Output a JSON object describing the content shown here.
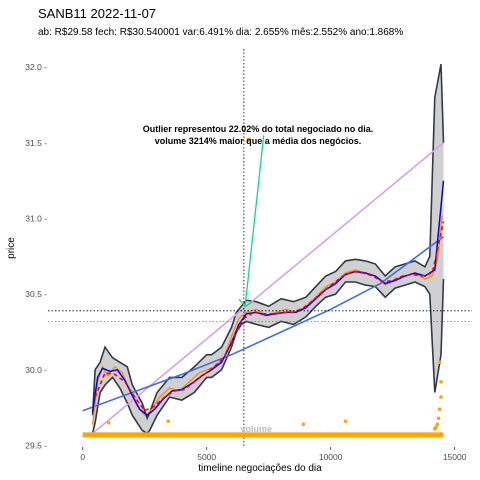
{
  "chart_data": {
    "type": "line",
    "title": "SANB11 2022-11-07",
    "subtitle": "ab: R$29.58 fech: R$30.540001 var:6.491% dia: 2.655% mês:2.552% ano:1.868%",
    "xlabel": "timeline negociações do dia",
    "ylabel": "price",
    "xlim": [
      -1400,
      15700
    ],
    "ylim": [
      29.49,
      32.12
    ],
    "x_ticks": [
      0,
      5000,
      10000,
      15000
    ],
    "x_tick_labels": [
      "0",
      "5000",
      "10000",
      "15000"
    ],
    "y_ticks": [
      29.5,
      30.0,
      30.5,
      31.0,
      31.5,
      32.0
    ],
    "y_tick_labels": [
      "29.5 -",
      "30.0 -",
      "30.5 -",
      "31.0 -",
      "31.5 -",
      "32.0 -"
    ],
    "annotation_lines": [
      "Outlier representou 22.02% do total negociado no dia.",
      "volume 3214% maior que a média dos negócios."
    ],
    "volume_label": "volume",
    "vline_x": 6500,
    "hline_black": 30.39,
    "hline_green": 30.32,
    "colors": {
      "ribbon": "#c8c8c8",
      "envelope": "#2f3b47",
      "price": "#ff8c00",
      "smooth": "#0000ff",
      "dashed": "#ff0000",
      "trend": "#3a6ee8",
      "diag": "#d8a0e8",
      "arrow": "#00e08a",
      "volume": "#ffa500",
      "hline_green": "#2fa84f"
    },
    "series": [
      {
        "key": "ribbon_upper",
        "points": [
          [
            400,
            29.7
          ],
          [
            500,
            30.0
          ],
          [
            700,
            30.05
          ],
          [
            900,
            30.15
          ],
          [
            1200,
            30.08
          ],
          [
            1500,
            30.05
          ],
          [
            1800,
            30.02
          ],
          [
            2000,
            29.9
          ],
          [
            2400,
            29.78
          ],
          [
            2600,
            29.68
          ],
          [
            2700,
            29.72
          ],
          [
            3000,
            29.85
          ],
          [
            3500,
            29.95
          ],
          [
            4000,
            29.95
          ],
          [
            4500,
            30.02
          ],
          [
            5000,
            30.1
          ],
          [
            5200,
            30.1
          ],
          [
            5600,
            30.15
          ],
          [
            6000,
            30.28
          ],
          [
            6200,
            30.38
          ],
          [
            6400,
            30.42
          ],
          [
            6600,
            30.46
          ],
          [
            7000,
            30.45
          ],
          [
            7500,
            30.42
          ],
          [
            8000,
            30.47
          ],
          [
            8500,
            30.45
          ],
          [
            9000,
            30.48
          ],
          [
            9400,
            30.55
          ],
          [
            9800,
            30.62
          ],
          [
            10200,
            30.65
          ],
          [
            10600,
            30.72
          ],
          [
            11000,
            30.73
          ],
          [
            11400,
            30.72
          ],
          [
            11800,
            30.7
          ],
          [
            12200,
            30.62
          ],
          [
            12600,
            30.68
          ],
          [
            13000,
            30.7
          ],
          [
            13400,
            30.72
          ],
          [
            13800,
            30.68
          ],
          [
            14000,
            30.75
          ],
          [
            14200,
            31.8
          ],
          [
            14450,
            32.02
          ],
          [
            14550,
            31.5
          ]
        ]
      },
      {
        "key": "ribbon_lower",
        "points": [
          [
            400,
            29.58
          ],
          [
            500,
            29.65
          ],
          [
            700,
            29.85
          ],
          [
            900,
            29.9
          ],
          [
            1200,
            29.95
          ],
          [
            1500,
            29.88
          ],
          [
            1800,
            29.78
          ],
          [
            2000,
            29.7
          ],
          [
            2400,
            29.6
          ],
          [
            2600,
            29.58
          ],
          [
            2700,
            29.6
          ],
          [
            3000,
            29.7
          ],
          [
            3500,
            29.82
          ],
          [
            4000,
            29.8
          ],
          [
            4500,
            29.85
          ],
          [
            5000,
            29.95
          ],
          [
            5200,
            29.95
          ],
          [
            5600,
            30.0
          ],
          [
            6000,
            30.15
          ],
          [
            6200,
            30.25
          ],
          [
            6400,
            30.3
          ],
          [
            6600,
            30.32
          ],
          [
            7000,
            30.3
          ],
          [
            7500,
            30.28
          ],
          [
            8000,
            30.32
          ],
          [
            8500,
            30.3
          ],
          [
            9000,
            30.35
          ],
          [
            9400,
            30.42
          ],
          [
            9800,
            30.48
          ],
          [
            10200,
            30.5
          ],
          [
            10600,
            30.58
          ],
          [
            11000,
            30.58
          ],
          [
            11400,
            30.56
          ],
          [
            11800,
            30.55
          ],
          [
            12200,
            30.48
          ],
          [
            12600,
            30.54
          ],
          [
            13000,
            30.56
          ],
          [
            13400,
            30.58
          ],
          [
            13800,
            30.55
          ],
          [
            14000,
            30.5
          ],
          [
            14200,
            29.85
          ],
          [
            14450,
            30.1
          ],
          [
            14550,
            30.6
          ]
        ]
      },
      {
        "key": "price",
        "points": [
          [
            400,
            29.64
          ],
          [
            600,
            29.92
          ],
          [
            800,
            30.02
          ],
          [
            1000,
            29.96
          ],
          [
            1300,
            30.02
          ],
          [
            1600,
            29.98
          ],
          [
            1900,
            29.86
          ],
          [
            2200,
            29.76
          ],
          [
            2500,
            29.7
          ],
          [
            2800,
            29.74
          ],
          [
            3100,
            29.82
          ],
          [
            3500,
            29.88
          ],
          [
            3900,
            29.86
          ],
          [
            4300,
            29.92
          ],
          [
            4700,
            29.98
          ],
          [
            5000,
            30.0
          ],
          [
            5300,
            30.02
          ],
          [
            5700,
            30.08
          ],
          [
            6000,
            30.22
          ],
          [
            6300,
            30.34
          ],
          [
            6600,
            30.38
          ],
          [
            7000,
            30.4
          ],
          [
            7400,
            30.36
          ],
          [
            7800,
            30.38
          ],
          [
            8200,
            30.4
          ],
          [
            8600,
            30.38
          ],
          [
            9000,
            30.42
          ],
          [
            9400,
            30.48
          ],
          [
            9800,
            30.55
          ],
          [
            10200,
            30.58
          ],
          [
            10600,
            30.64
          ],
          [
            11000,
            30.66
          ],
          [
            11400,
            30.64
          ],
          [
            11800,
            30.62
          ],
          [
            12200,
            30.56
          ],
          [
            12600,
            30.6
          ],
          [
            13000,
            30.62
          ],
          [
            13400,
            30.64
          ],
          [
            13800,
            30.6
          ],
          [
            14100,
            30.62
          ],
          [
            14300,
            30.72
          ],
          [
            14500,
            31.02
          ]
        ]
      },
      {
        "key": "smooth",
        "points": [
          [
            400,
            29.72
          ],
          [
            600,
            29.95
          ],
          [
            800,
            30.01
          ],
          [
            1100,
            29.99
          ],
          [
            1400,
            30.0
          ],
          [
            1700,
            29.93
          ],
          [
            2000,
            29.83
          ],
          [
            2300,
            29.74
          ],
          [
            2600,
            29.7
          ],
          [
            2900,
            29.74
          ],
          [
            3200,
            29.8
          ],
          [
            3600,
            29.86
          ],
          [
            4000,
            29.87
          ],
          [
            4400,
            29.91
          ],
          [
            4800,
            29.96
          ],
          [
            5200,
            30.0
          ],
          [
            5600,
            30.05
          ],
          [
            6000,
            30.18
          ],
          [
            6300,
            30.3
          ],
          [
            6600,
            30.37
          ],
          [
            7000,
            30.38
          ],
          [
            7400,
            30.36
          ],
          [
            7800,
            30.37
          ],
          [
            8200,
            30.38
          ],
          [
            8600,
            30.38
          ],
          [
            9000,
            30.41
          ],
          [
            9400,
            30.47
          ],
          [
            9800,
            30.53
          ],
          [
            10200,
            30.57
          ],
          [
            10600,
            30.63
          ],
          [
            11000,
            30.65
          ],
          [
            11400,
            30.64
          ],
          [
            11800,
            30.62
          ],
          [
            12200,
            30.57
          ],
          [
            12600,
            30.59
          ],
          [
            13000,
            30.62
          ],
          [
            13400,
            30.64
          ],
          [
            13800,
            30.62
          ],
          [
            14200,
            30.66
          ],
          [
            14550,
            31.25
          ]
        ]
      },
      {
        "key": "dashed",
        "points": [
          [
            500,
            29.82
          ],
          [
            900,
            29.98
          ],
          [
            1300,
            29.97
          ],
          [
            1700,
            29.92
          ],
          [
            2100,
            29.82
          ],
          [
            2500,
            29.73
          ],
          [
            2900,
            29.76
          ],
          [
            3300,
            29.82
          ],
          [
            3700,
            29.86
          ],
          [
            4100,
            29.87
          ],
          [
            4500,
            29.92
          ],
          [
            4900,
            29.97
          ],
          [
            5300,
            30.02
          ],
          [
            5700,
            30.08
          ],
          [
            6100,
            30.22
          ],
          [
            6500,
            30.34
          ],
          [
            6900,
            30.38
          ],
          [
            7300,
            30.37
          ],
          [
            7700,
            30.37
          ],
          [
            8100,
            30.38
          ],
          [
            8500,
            30.38
          ],
          [
            8900,
            30.41
          ],
          [
            9300,
            30.46
          ],
          [
            9700,
            30.52
          ],
          [
            10100,
            30.57
          ],
          [
            10500,
            30.62
          ],
          [
            10900,
            30.65
          ],
          [
            11300,
            30.64
          ],
          [
            11700,
            30.62
          ],
          [
            12100,
            30.58
          ],
          [
            12500,
            30.59
          ],
          [
            12900,
            30.62
          ],
          [
            13300,
            30.63
          ],
          [
            13700,
            30.62
          ],
          [
            14100,
            30.64
          ],
          [
            14550,
            30.98
          ]
        ]
      },
      {
        "key": "trend",
        "points": [
          [
            0,
            29.73
          ],
          [
            2000,
            29.85
          ],
          [
            4000,
            29.97
          ],
          [
            6000,
            30.1
          ],
          [
            8000,
            30.25
          ],
          [
            10000,
            30.4
          ],
          [
            12000,
            30.57
          ],
          [
            14550,
            30.88
          ]
        ]
      },
      {
        "key": "diag",
        "points": [
          [
            400,
            29.58
          ],
          [
            14550,
            31.5
          ]
        ]
      },
      {
        "key": "price_outlier",
        "points": [
          [
            6700,
            31.52
          ]
        ]
      }
    ],
    "volume_points": [
      [
        14400,
        30.05
      ],
      [
        14450,
        29.92
      ],
      [
        14450,
        29.82
      ],
      [
        14400,
        29.74
      ],
      [
        14350,
        29.68
      ],
      [
        14300,
        29.64
      ],
      [
        14250,
        29.62
      ],
      [
        14200,
        29.61
      ],
      [
        10600,
        29.66
      ],
      [
        8900,
        29.64
      ],
      [
        3450,
        29.66
      ],
      [
        1050,
        29.65
      ]
    ]
  }
}
